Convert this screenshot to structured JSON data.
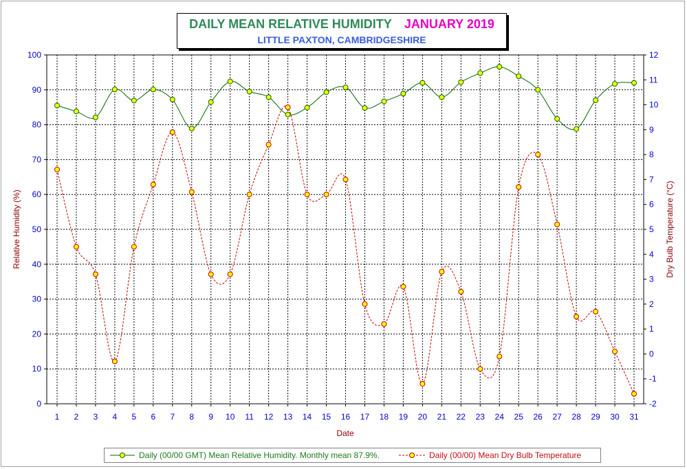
{
  "title": "DAILY MEAN RELATIVE HUMIDITY",
  "title_date": "JANUARY 2019",
  "subtitle": "LITTLE PAXTON, CAMBRIDGESHIRE",
  "colors": {
    "title": "#2e8b57",
    "title_date": "#e800c8",
    "subtitle": "#3a5cd8",
    "humidity_line": "#006400",
    "humidity_marker": "#ffff00",
    "temperature_line": "#c00000",
    "temperature_marker": "#ffff00",
    "axis_text": "#0000cc",
    "axis_label": "#8b0000"
  },
  "legend": {
    "humidity": "Daily (00/00 GMT) Mean Relative Humidity. Monthly mean 87.9%.",
    "temperature": "Daily (00/00) Mean Dry Bulb Temperature"
  },
  "chart_data": {
    "type": "line",
    "xlabel": "Date",
    "ylabel": "Relative Humidity (%)",
    "y2label": "Dry Bulb Temperature (°C)",
    "ylim": [
      0,
      100
    ],
    "y2lim": [
      -2,
      12
    ],
    "yticks": [
      0,
      10,
      20,
      30,
      40,
      50,
      60,
      70,
      80,
      90,
      100
    ],
    "y2ticks": [
      -2,
      -1,
      0,
      1,
      2,
      3,
      4,
      5,
      6,
      7,
      8,
      9,
      10,
      11,
      12
    ],
    "grid": true,
    "legend_position": "bottom",
    "categories": [
      "1",
      "2",
      "3",
      "4",
      "5",
      "6",
      "7",
      "8",
      "9",
      "10",
      "11",
      "12",
      "13",
      "14",
      "15",
      "16",
      "17",
      "18",
      "19",
      "20",
      "21",
      "22",
      "23",
      "24",
      "25",
      "26",
      "27",
      "28",
      "29",
      "30",
      "31"
    ],
    "series": [
      {
        "name": "Daily (00/00 GMT) Mean Relative Humidity. Monthly mean 87.9%.",
        "axis": "left",
        "style": "solid",
        "values": [
          85.5,
          83.8,
          82.1,
          90.1,
          86.9,
          90.1,
          87.2,
          78.9,
          86.5,
          92.4,
          89.5,
          87.9,
          82.9,
          84.9,
          89.3,
          90.7,
          84.8,
          86.7,
          88.9,
          92.0,
          87.9,
          92.2,
          94.8,
          96.6,
          93.9,
          90.0,
          81.7,
          78.8,
          87.0,
          91.7,
          92.0
        ]
      },
      {
        "name": "Daily (00/00) Mean Dry Bulb Temperature",
        "axis": "right",
        "style": "dashed",
        "values": [
          7.4,
          4.3,
          3.2,
          -0.3,
          4.3,
          6.8,
          8.9,
          6.5,
          3.2,
          3.2,
          6.4,
          8.4,
          9.9,
          6.4,
          6.4,
          7.0,
          2.0,
          1.2,
          2.7,
          -1.2,
          3.3,
          2.5,
          -0.6,
          -0.1,
          6.7,
          8.0,
          5.2,
          1.5,
          1.7,
          0.1,
          -1.6
        ]
      }
    ]
  }
}
